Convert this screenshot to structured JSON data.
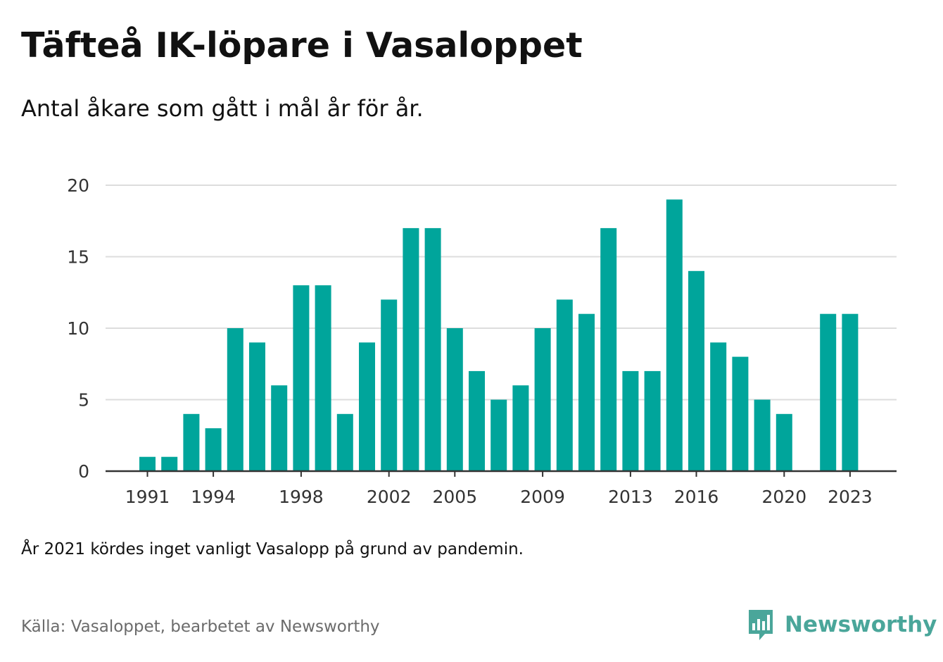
{
  "header": {
    "title": "Täfteå IK-löpare i Vasaloppet",
    "subtitle": "Antal åkare som gått i mål år för år."
  },
  "footer": {
    "note": "År 2021 kördes inget vanligt Vasalopp på grund av pandemin.",
    "source": "Källa: Vasaloppet, bearbetet av Newsworthy",
    "brand_name": "Newsworthy",
    "brand_icon": "chart-speech-bubble-icon"
  },
  "colors": {
    "bar": "#00a59b",
    "grid": "#dddddd",
    "axis": "#333333",
    "brand": "#4aa69a"
  },
  "chart_data": {
    "type": "bar",
    "categories": [
      "1991",
      "1992",
      "1993",
      "1994",
      "1995",
      "1996",
      "1997",
      "1998",
      "1999",
      "2000",
      "2001",
      "2002",
      "2003",
      "2004",
      "2005",
      "2006",
      "2007",
      "2008",
      "2009",
      "2010",
      "2011",
      "2012",
      "2013",
      "2014",
      "2015",
      "2016",
      "2017",
      "2018",
      "2019",
      "2020",
      "2021",
      "2022",
      "2023"
    ],
    "values": [
      1,
      1,
      4,
      3,
      10,
      9,
      6,
      13,
      13,
      4,
      9,
      12,
      17,
      17,
      10,
      7,
      5,
      6,
      10,
      12,
      11,
      17,
      7,
      7,
      19,
      14,
      9,
      8,
      5,
      4,
      0,
      11,
      11
    ],
    "x_tick_labels": [
      "1991",
      "1994",
      "1998",
      "2002",
      "2005",
      "2009",
      "2013",
      "2016",
      "2020",
      "2023"
    ],
    "y_ticks": [
      0,
      5,
      10,
      15,
      20
    ],
    "ylim": [
      0,
      20
    ],
    "grid": true,
    "legend": "none"
  }
}
